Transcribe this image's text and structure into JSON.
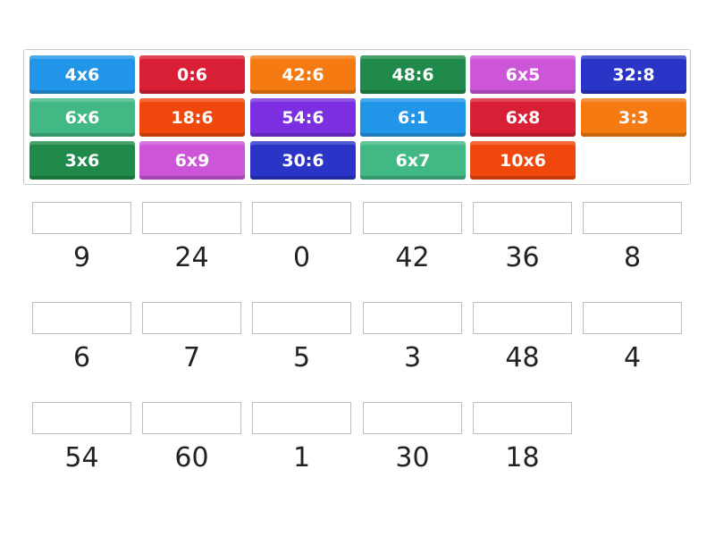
{
  "tiles": [
    {
      "label": "4x6",
      "color": "#2196e8"
    },
    {
      "label": "0:6",
      "color": "#d91f35"
    },
    {
      "label": "42:6",
      "color": "#f57a12"
    },
    {
      "label": "48:6",
      "color": "#1f8a4a"
    },
    {
      "label": "6x5",
      "color": "#cc55d8"
    },
    {
      "label": "32:8",
      "color": "#2a35c8"
    },
    {
      "label": "6x6",
      "color": "#42b884"
    },
    {
      "label": "18:6",
      "color": "#f0480c"
    },
    {
      "label": "54:6",
      "color": "#7b2fe0"
    },
    {
      "label": "6:1",
      "color": "#2196e8"
    },
    {
      "label": "6x8",
      "color": "#d91f35"
    },
    {
      "label": "3:3",
      "color": "#f57a12"
    },
    {
      "label": "3x6",
      "color": "#1f8a4a"
    },
    {
      "label": "6x9",
      "color": "#cc55d8"
    },
    {
      "label": "30:6",
      "color": "#2a35c8"
    },
    {
      "label": "6x7",
      "color": "#42b884"
    },
    {
      "label": "10x6",
      "color": "#f0480c"
    }
  ],
  "answers": [
    "9",
    "24",
    "0",
    "42",
    "36",
    "8",
    "6",
    "7",
    "5",
    "3",
    "48",
    "4",
    "54",
    "60",
    "1",
    "30",
    "18"
  ]
}
